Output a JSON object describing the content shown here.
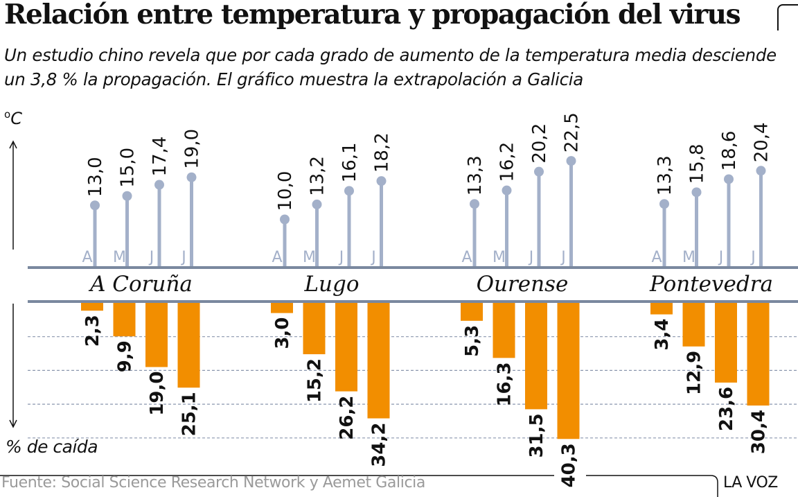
{
  "header": {
    "title": "Relación entre temperatura y propagación del virus",
    "subtitle": "Un estudio chino revela que por cada grado de aumento de la temperatura media desciende un 3,8 % la propagación. El gráfico muestra la extrapolación a Galicia"
  },
  "axis": {
    "temp_unit": "C",
    "temp_degree": "o",
    "drop_label": "% de caída"
  },
  "footer": {
    "source": "Fuente: Social Science Research Network y Aemet Galicia",
    "brand": "LA VOZ"
  },
  "colors": {
    "stem": "#a3b0c9",
    "month_label": "#a3b0c9",
    "baseline": "#7a889f",
    "bar": "#f28e00",
    "gridline": "#8a96ad",
    "text": "#111111"
  },
  "chart_data": [
    {
      "type": "lollipop",
      "title": "Temperatura media",
      "ylabel": "°C",
      "categories": [
        "A",
        "M",
        "J",
        "J"
      ],
      "groups": [
        "A Coruña",
        "Lugo",
        "Ourense",
        "Pontevedra"
      ],
      "series": [
        {
          "name": "A Coruña",
          "values": [
            13.0,
            15.0,
            17.4,
            19.0
          ],
          "labels": [
            "13,0",
            "15,0",
            "17,4",
            "19,0"
          ]
        },
        {
          "name": "Lugo",
          "values": [
            10.0,
            13.2,
            16.1,
            18.2
          ],
          "labels": [
            "10,0",
            "13,2",
            "16,1",
            "18,2"
          ]
        },
        {
          "name": "Ourense",
          "values": [
            13.3,
            16.2,
            20.2,
            22.5
          ],
          "labels": [
            "13,3",
            "16,2",
            "20,2",
            "22,5"
          ]
        },
        {
          "name": "Pontevedra",
          "values": [
            13.3,
            15.8,
            18.6,
            20.4
          ],
          "labels": [
            "13,3",
            "15,8",
            "18,6",
            "20,4"
          ]
        }
      ],
      "ylim": [
        0,
        24
      ]
    },
    {
      "type": "bar",
      "title": "% de caída de la propagación",
      "ylabel": "% de caída",
      "categories": [
        "A",
        "M",
        "J",
        "J"
      ],
      "groups": [
        "A Coruña",
        "Lugo",
        "Ourense",
        "Pontevedra"
      ],
      "series": [
        {
          "name": "A Coruña",
          "values": [
            2.3,
            9.9,
            19.0,
            25.1
          ],
          "labels": [
            "2,3",
            "9,9",
            "19,0",
            "25,1"
          ]
        },
        {
          "name": "Lugo",
          "values": [
            3.0,
            15.2,
            26.2,
            34.2
          ],
          "labels": [
            "3,0",
            "15,2",
            "26,2",
            "34,2"
          ]
        },
        {
          "name": "Ourense",
          "values": [
            5.3,
            16.3,
            31.5,
            40.3
          ],
          "labels": [
            "5,3",
            "16,3",
            "31,5",
            "40,3"
          ]
        },
        {
          "name": "Pontevedra",
          "values": [
            3.4,
            12.9,
            23.6,
            30.4
          ],
          "labels": [
            "3,4",
            "12,9",
            "23,6",
            "30,4"
          ]
        }
      ],
      "gridlines": [
        10,
        20,
        30,
        40
      ],
      "ylim": [
        0,
        40.3
      ],
      "direction": "downward"
    }
  ]
}
